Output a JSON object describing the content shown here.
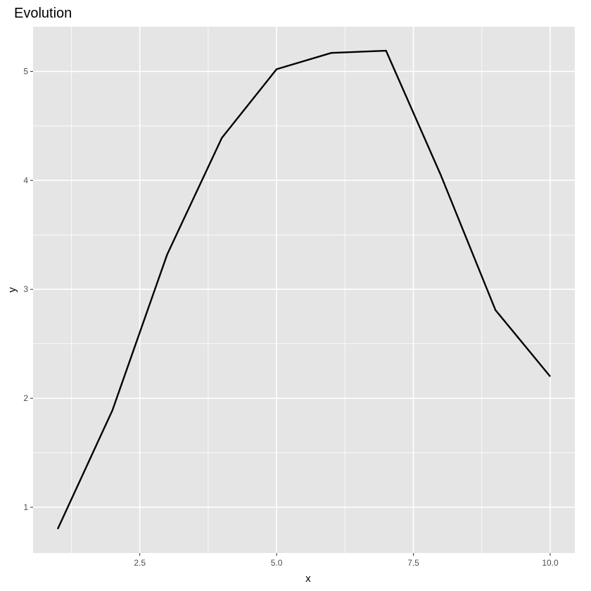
{
  "chart_data": {
    "type": "line",
    "title": "Evolution",
    "xlabel": "x",
    "ylabel": "y",
    "x": [
      1,
      2,
      3,
      4,
      5,
      6,
      7,
      8,
      9,
      10
    ],
    "series": [
      {
        "values": [
          0.8,
          1.89,
          3.32,
          4.39,
          5.02,
          5.17,
          5.19,
          4.05,
          2.81,
          2.2
        ]
      }
    ],
    "xlim": [
      0.55,
      10.45
    ],
    "ylim": [
      0.58,
      5.41
    ],
    "x_ticks": [
      2.5,
      5.0,
      7.5,
      10.0
    ],
    "x_tick_labels": [
      "2.5",
      "5.0",
      "7.5",
      "10.0"
    ],
    "y_ticks": [
      1,
      2,
      3,
      4,
      5
    ],
    "y_tick_labels": [
      "1",
      "2",
      "3",
      "4",
      "5"
    ],
    "grid": true,
    "panel_background": "#e5e5e5",
    "grid_color": "#ffffff",
    "line_color": "#000000",
    "tick_color": "#333333"
  }
}
